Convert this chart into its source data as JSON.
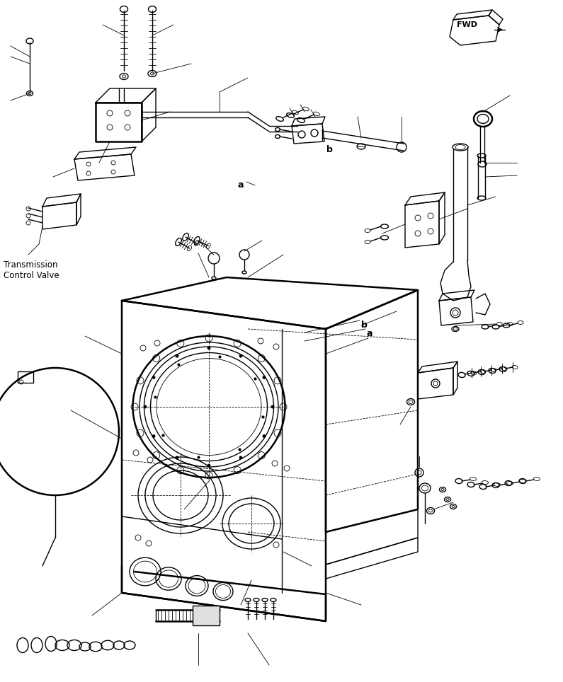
{
  "bg_color": "#ffffff",
  "lc": "#000000",
  "lw": 1.0,
  "tlw": 0.6,
  "thw": 1.8,
  "figsize": [
    7.95,
    9.64
  ],
  "dpi": 100,
  "title": "Transmission\nControl Valve",
  "fwd": "FWD",
  "label_a": "a",
  "label_b": "b"
}
